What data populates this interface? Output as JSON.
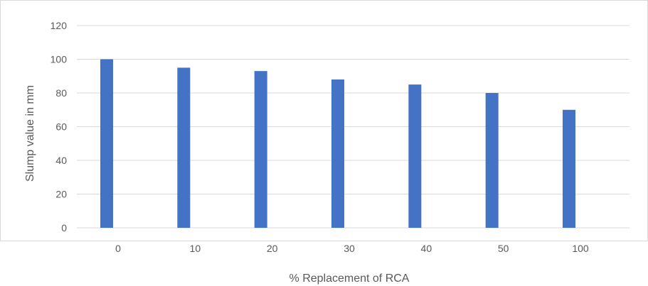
{
  "chart_data": {
    "type": "bar",
    "title": "",
    "xlabel": "% Replacement of RCA",
    "ylabel": "Slump value in mm",
    "categories": [
      "0",
      "10",
      "20",
      "30",
      "40",
      "50",
      "100"
    ],
    "values": [
      100,
      95,
      93,
      88,
      85,
      80,
      70
    ],
    "ylim": [
      0,
      120
    ],
    "yticks": [
      "0",
      "20",
      "40",
      "60",
      "80",
      "100",
      "120"
    ],
    "grid": true,
    "legend": "none",
    "bar_color": "#4472C4",
    "grid_color": "#D9D9D9"
  }
}
